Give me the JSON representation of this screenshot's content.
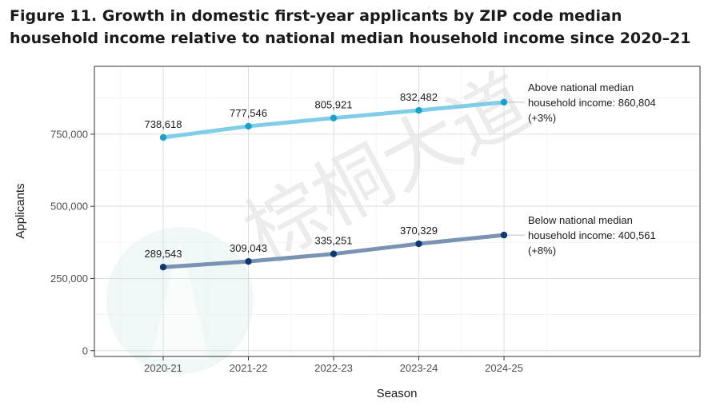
{
  "figure": {
    "title": "Figure 11. Growth in domestic first-year applicants by ZIP code median household income relative to national median household income since 2020–21"
  },
  "watermark": {
    "text": "棕桐大道"
  },
  "chart_data": {
    "type": "line",
    "title": "Figure 11. Growth in domestic first-year applicants by ZIP code median household income relative to national median household income since 2020–21",
    "xlabel": "Season",
    "ylabel": "Applicants",
    "categories": [
      "2020-21",
      "2021-22",
      "2022-23",
      "2023-24",
      "2024-25"
    ],
    "ylim": [
      -20000,
      985000
    ],
    "yticks": [
      0,
      250000,
      500000,
      750000
    ],
    "ytick_labels": [
      "0",
      "250,000",
      "500,000",
      "750,000"
    ],
    "grid": true,
    "series": [
      {
        "name": "Above national median household income",
        "values": [
          738618,
          777546,
          805921,
          832482,
          860804
        ],
        "labels": [
          "738,618",
          "777,546",
          "805,921",
          "832,482",
          "860,804"
        ],
        "line_color": "#7fcde6",
        "point_color": "#1ba1cc",
        "end_annotation": [
          "Above national median",
          "household income: 860,804",
          "(+3%)"
        ]
      },
      {
        "name": "Below national median household income",
        "values": [
          289543,
          309043,
          335251,
          370329,
          400561
        ],
        "labels": [
          "289,543",
          "309,043",
          "335,251",
          "370,329",
          "400,561"
        ],
        "line_color": "#7a93b3",
        "point_color": "#0d3a70",
        "end_annotation": [
          "Below national median",
          "household income: 400,561",
          "(+8%)"
        ]
      }
    ]
  }
}
